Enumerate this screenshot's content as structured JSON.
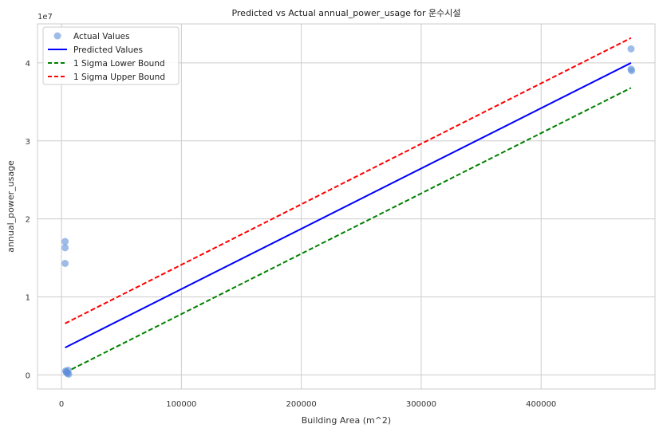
{
  "chart_data": {
    "type": "scatter",
    "title": "Predicted vs Actual annual_power_usage for 운수시설",
    "xlabel": "Building Area (m^2)",
    "ylabel": "annual_power_usage",
    "y_multiplier_label": "1e7",
    "xlim": [
      -20000,
      495000
    ],
    "ylim": [
      -1800000,
      45000000
    ],
    "x_ticks": [
      0,
      100000,
      200000,
      300000,
      400000
    ],
    "y_ticks": [
      0,
      10000000,
      20000000,
      30000000,
      40000000
    ],
    "x_tick_labels": [
      "0",
      "100000",
      "200000",
      "300000",
      "400000"
    ],
    "y_tick_labels": [
      "0",
      "1",
      "2",
      "3",
      "4"
    ],
    "grid": true,
    "legend_position": "top-left",
    "series": [
      {
        "name": "Actual Values",
        "kind": "scatter",
        "color": "#5f8fdb",
        "points": [
          [
            3000,
            17100000
          ],
          [
            3000,
            16300000
          ],
          [
            3000,
            14300000
          ],
          [
            3500,
            500000
          ],
          [
            4500,
            300000
          ],
          [
            5000,
            200000
          ],
          [
            5500,
            600000
          ],
          [
            6000,
            100000
          ],
          [
            4000,
            400000
          ],
          [
            475000,
            41800000
          ],
          [
            475000,
            39200000
          ],
          [
            475500,
            39000000
          ]
        ]
      },
      {
        "name": "Predicted Values",
        "kind": "line",
        "color": "#0000ff",
        "dash": false,
        "points": [
          [
            3000,
            3500000
          ],
          [
            475000,
            40000000
          ]
        ]
      },
      {
        "name": "1 Sigma Lower Bound",
        "kind": "line",
        "color": "#008000",
        "dash": true,
        "points": [
          [
            3000,
            300000
          ],
          [
            475000,
            36800000
          ]
        ]
      },
      {
        "name": "1 Sigma Upper Bound",
        "kind": "line",
        "color": "#ff0000",
        "dash": true,
        "points": [
          [
            3000,
            6600000
          ],
          [
            475000,
            43200000
          ]
        ]
      }
    ]
  }
}
